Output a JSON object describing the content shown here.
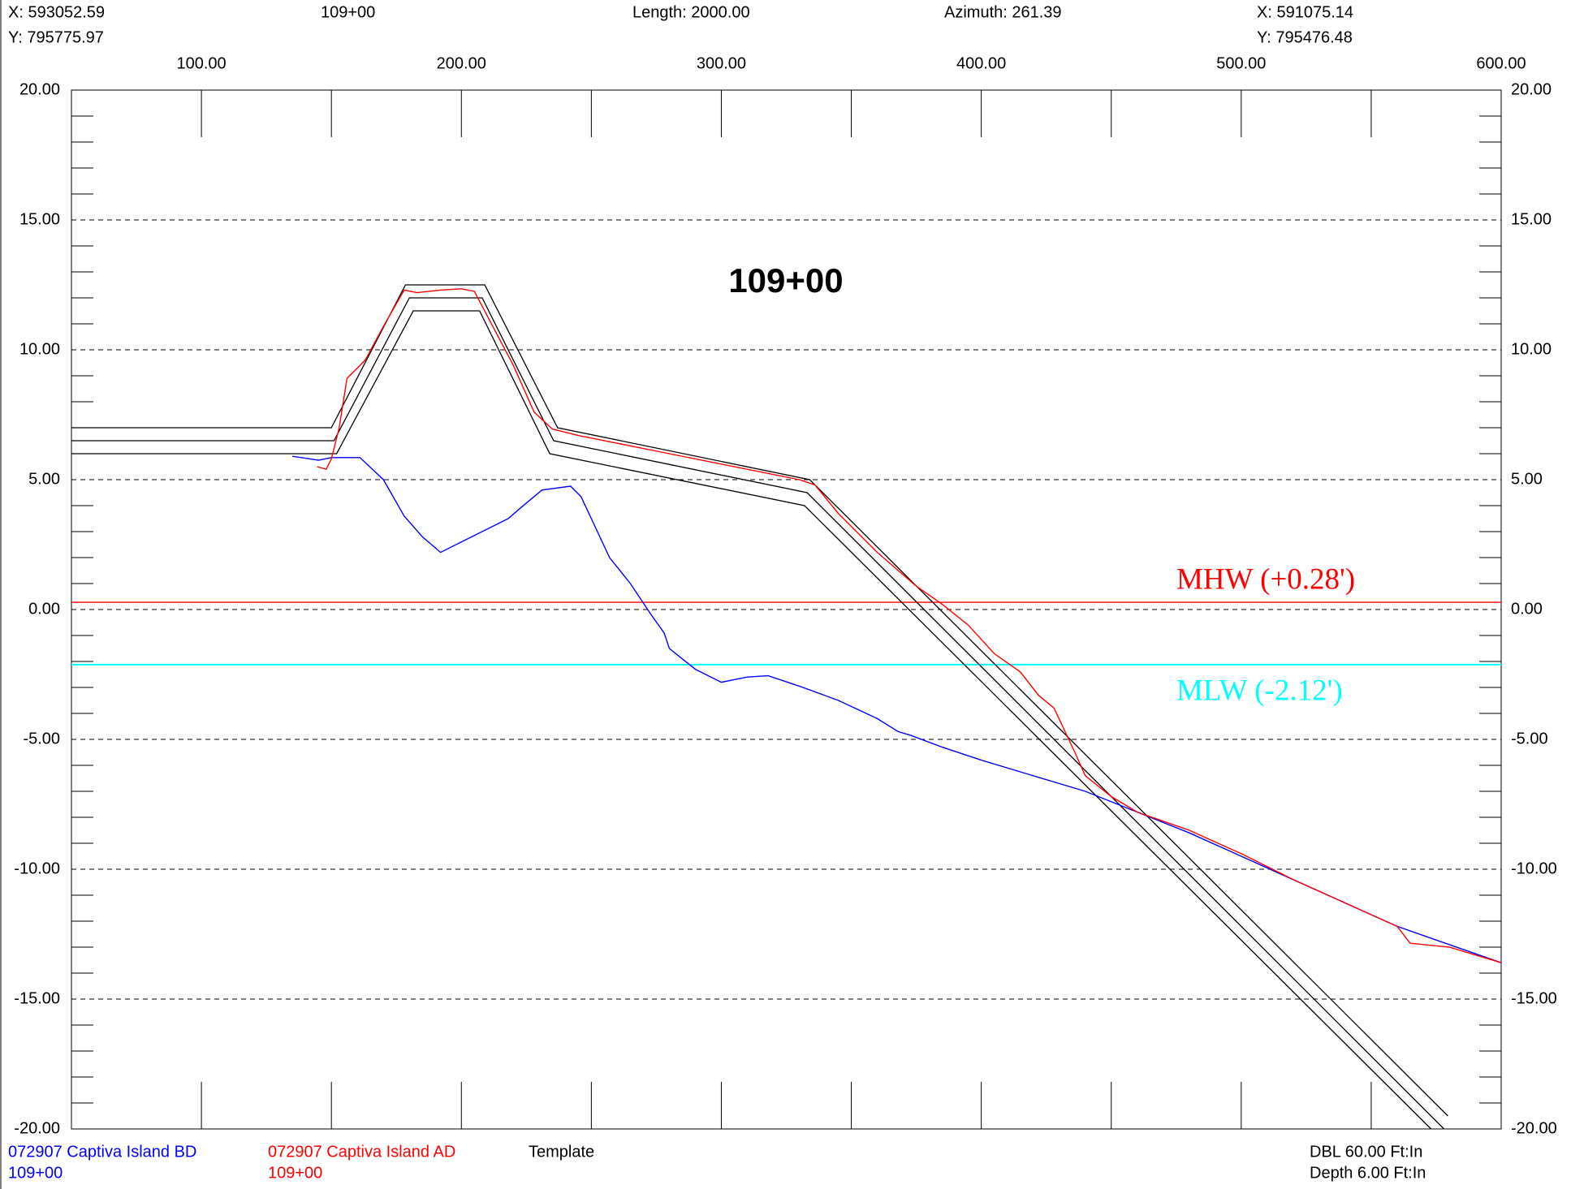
{
  "header": {
    "left_x": "X: 593052.59",
    "left_y": "Y: 795775.97",
    "station": "109+00",
    "length": "Length: 2000.00",
    "azimuth": "Azimuth: 261.39",
    "right_x": "X: 591075.14",
    "right_y": "Y: 795476.48"
  },
  "chart_data": {
    "type": "line",
    "title": "109+00",
    "xlim": [
      50,
      600
    ],
    "xticks": [
      {
        "value": 100,
        "label": "100.00"
      },
      {
        "value": 200,
        "label": "200.00"
      },
      {
        "value": 300,
        "label": "300.00"
      },
      {
        "value": 400,
        "label": "400.00"
      },
      {
        "value": 500,
        "label": "500.00"
      },
      {
        "value": 600,
        "label": "600.00"
      }
    ],
    "x_minor_ticks": [
      150,
      250,
      350,
      450,
      550
    ],
    "ylim": [
      -20,
      20
    ],
    "yticks": [
      {
        "value": -20,
        "label": "-20.00"
      },
      {
        "value": -15,
        "label": "-15.00"
      },
      {
        "value": -10,
        "label": "-10.00"
      },
      {
        "value": -5,
        "label": "-5.00"
      },
      {
        "value": 0,
        "label": "0.00"
      },
      {
        "value": 5,
        "label": "5.00"
      },
      {
        "value": 10,
        "label": "10.00"
      },
      {
        "value": 15,
        "label": "15.00"
      },
      {
        "value": 20,
        "label": "20.00"
      }
    ],
    "y_minor_ticks": [
      -19,
      -18,
      -17,
      -16,
      -14,
      -13,
      -12,
      -11,
      -9,
      -8,
      -7,
      -6,
      -4,
      -3,
      -2,
      -1,
      1,
      2,
      3,
      4,
      6,
      7,
      8,
      9,
      11,
      12,
      13,
      14,
      16,
      17,
      18,
      19
    ],
    "grid": true,
    "series": [
      {
        "name": "072907 Captiva Island BD",
        "station": "109+00",
        "color": "#0000ff",
        "x": [
          135,
          145,
          150,
          161,
          170,
          178,
          185,
          192,
          200,
          208,
          218,
          225,
          231,
          242,
          246,
          250,
          257,
          265,
          273,
          278,
          280,
          290,
          300,
          310,
          318,
          330,
          345,
          360,
          368,
          373,
          385,
          400,
          420,
          440,
          460,
          480,
          500,
          520,
          540,
          560,
          580,
          600
        ],
        "values": [
          5.9,
          5.75,
          5.85,
          5.85,
          5.0,
          3.6,
          2.8,
          2.2,
          2.6,
          3.0,
          3.5,
          4.1,
          4.6,
          4.75,
          4.35,
          3.5,
          2.0,
          1.0,
          -0.2,
          -0.9,
          -1.5,
          -2.3,
          -2.8,
          -2.6,
          -2.55,
          -2.95,
          -3.5,
          -4.2,
          -4.7,
          -4.85,
          -5.3,
          -5.8,
          -6.4,
          -7.0,
          -7.8,
          -8.6,
          -9.5,
          -10.4,
          -11.3,
          -12.2,
          -12.9,
          -13.6
        ]
      },
      {
        "name": "072907 Captiva Island AD",
        "station": "109+00",
        "color": "#ff0000",
        "x": [
          144.5,
          148,
          150,
          153,
          156,
          160,
          163,
          170,
          178,
          183,
          192,
          200,
          205,
          210,
          220,
          228,
          235,
          245,
          260,
          280,
          300,
          315,
          330,
          336,
          345,
          360,
          375,
          385,
          395,
          405,
          415,
          422,
          428,
          436,
          440,
          450,
          460,
          480,
          500,
          520,
          540,
          560,
          565,
          580,
          600
        ],
        "values": [
          5.5,
          5.4,
          5.8,
          7.0,
          8.9,
          9.3,
          9.6,
          10.9,
          12.3,
          12.2,
          12.3,
          12.35,
          12.25,
          11.3,
          9.4,
          7.6,
          6.95,
          6.7,
          6.4,
          6.0,
          5.6,
          5.3,
          5.0,
          4.8,
          3.7,
          2.2,
          0.9,
          0.2,
          -0.6,
          -1.7,
          -2.4,
          -3.3,
          -3.8,
          -5.5,
          -6.4,
          -7.2,
          -7.8,
          -8.5,
          -9.4,
          -10.4,
          -11.3,
          -12.2,
          -12.85,
          -13.0,
          -13.6
        ]
      }
    ],
    "template": {
      "name": "Template",
      "color": "#000000",
      "lines": [
        {
          "x": [
            50,
            150,
            178.5,
            209,
            237,
            334,
            579.5
          ],
          "values": [
            7,
            7,
            12.5,
            12.5,
            7,
            5,
            -19.5
          ]
        },
        {
          "x": [
            50,
            151,
            180,
            208,
            235.5,
            333,
            578
          ],
          "values": [
            6.5,
            6.5,
            12,
            12,
            6.5,
            4.5,
            -20
          ]
        },
        {
          "x": [
            50,
            152,
            181.5,
            207,
            234,
            332,
            573
          ],
          "values": [
            6,
            6,
            11.5,
            11.5,
            6,
            4,
            -20
          ]
        }
      ]
    },
    "reference_lines": [
      {
        "label": "MHW (+0.28')",
        "value": 0.28,
        "color": "#ff0000"
      },
      {
        "label": "MLW (-2.12')",
        "value": -2.12,
        "color": "#00ffff"
      }
    ],
    "notes": [
      "DBL 60.00 Ft:In",
      "Depth 6.00 Ft:In"
    ]
  }
}
